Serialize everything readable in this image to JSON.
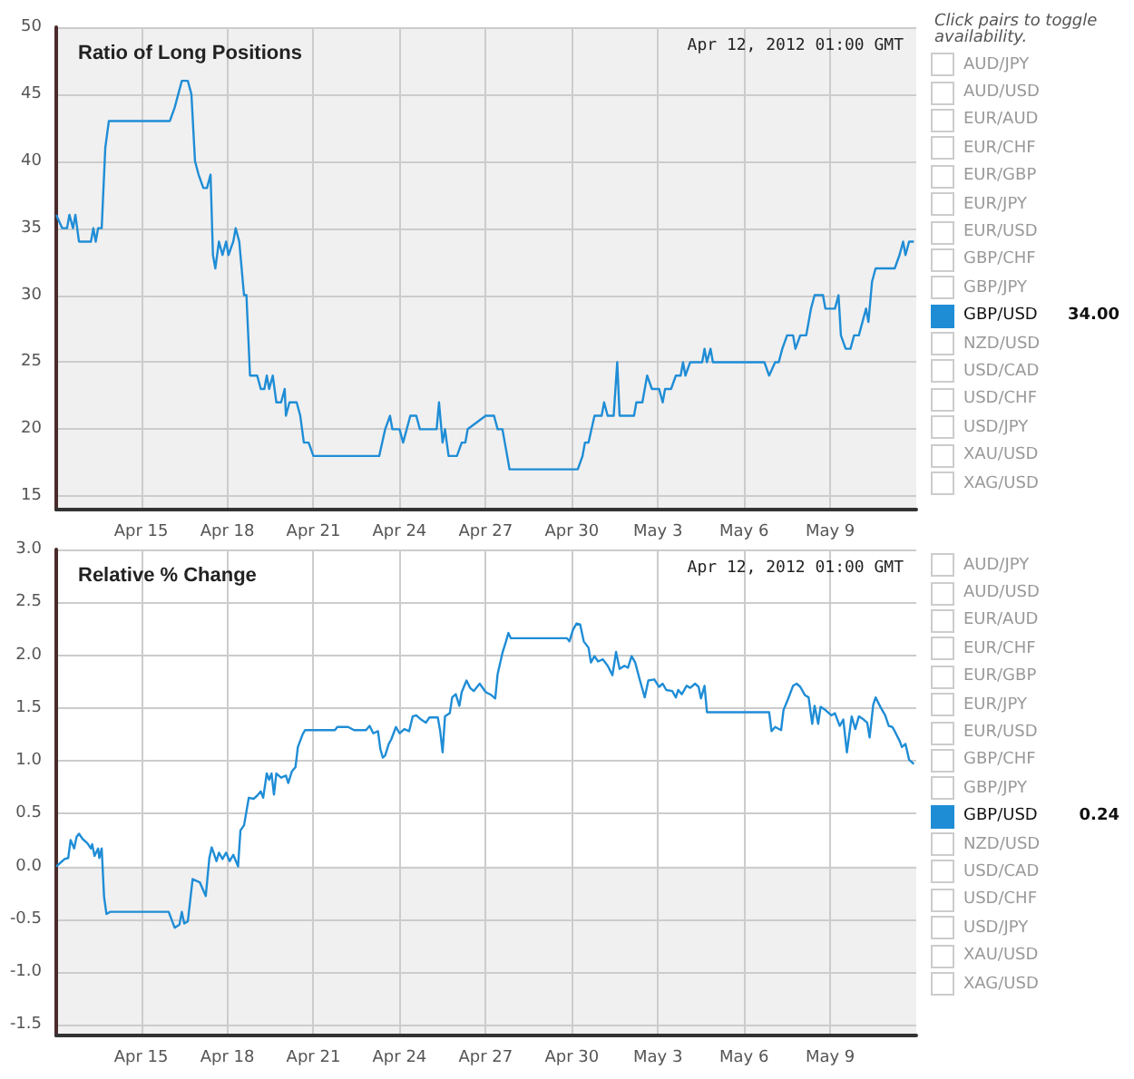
{
  "chart_data": [
    {
      "type": "line",
      "title": "Ratio of Long Positions",
      "legend_title": "Click pairs to toggle availability.",
      "legend": "right",
      "grid": true,
      "marker": "none",
      "annotations": [
        "Apr 12, 2012 01:00 GMT",
        "AUD/JPY",
        "AUD/USD",
        "EUR/AUD",
        "EUR/CHF",
        "EUR/GBP",
        "EUR/JPY",
        "EUR/USD",
        "GBP/CHF",
        "GBP/JPY",
        "NZD/USD",
        "USD/CAD",
        "USD/CHF",
        "USD/JPY",
        "XAU/USD",
        "XAG/USD",
        "34.00"
      ],
      "xlim": [
        "2012-04-12T01:00",
        "2012-05-12T00:00"
      ],
      "xticks": [
        {
          "value": "2012-04-15",
          "label": "Apr 15"
        },
        {
          "value": "2012-04-18",
          "label": "Apr 18"
        },
        {
          "value": "2012-04-21",
          "label": "Apr 21"
        },
        {
          "value": "2012-04-24",
          "label": "Apr 24"
        },
        {
          "value": "2012-04-27",
          "label": "Apr 27"
        },
        {
          "value": "2012-04-30",
          "label": "Apr 30"
        },
        {
          "value": "2012-05-03",
          "label": "May 3"
        },
        {
          "value": "2012-05-06",
          "label": "May 6"
        },
        {
          "value": "2012-05-09",
          "label": "May 9"
        }
      ],
      "ylim": [
        14,
        50
      ],
      "yticks": [
        15,
        20,
        25,
        30,
        35,
        40,
        45,
        50
      ],
      "x": [
        "2012-04-12T01:00",
        "2012-04-12T06:00",
        "2012-04-12T10:00",
        "2012-04-12T12:00",
        "2012-04-12T15:00",
        "2012-04-12T17:00",
        "2012-04-12T20:00",
        "2012-04-13T06:00",
        "2012-04-13T08:00",
        "2012-04-13T10:00",
        "2012-04-13T12:00",
        "2012-04-13T15:00",
        "2012-04-13T18:00",
        "2012-04-13T21:00",
        "2012-04-16T00:00",
        "2012-04-16T04:00",
        "2012-04-16T07:00",
        "2012-04-16T10:00",
        "2012-04-16T15:00",
        "2012-04-16T18:00",
        "2012-04-16T21:00",
        "2012-04-17T00:00",
        "2012-04-17T04:00",
        "2012-04-17T07:00",
        "2012-04-17T10:00",
        "2012-04-17T12:00",
        "2012-04-17T14:00",
        "2012-04-17T17:00",
        "2012-04-17T20:00",
        "2012-04-17T23:00",
        "2012-04-18T01:00",
        "2012-04-18T05:00",
        "2012-04-18T07:00",
        "2012-04-18T10:00",
        "2012-04-18T14:00",
        "2012-04-18T16:00",
        "2012-04-18T19:00",
        "2012-04-19T01:00",
        "2012-04-19T04:00",
        "2012-04-19T07:00",
        "2012-04-19T09:00",
        "2012-04-19T11:00",
        "2012-04-19T14:00",
        "2012-04-19T17:00",
        "2012-04-19T21:00",
        "2012-04-20T00:00",
        "2012-04-20T01:00",
        "2012-04-20T04:00",
        "2012-04-20T10:00",
        "2012-04-20T13:00",
        "2012-04-20T16:00",
        "2012-04-20T20:00",
        "2012-04-21T00:00",
        "2012-04-23T07:00",
        "2012-04-23T12:00",
        "2012-04-23T16:00",
        "2012-04-23T18:00",
        "2012-04-24T00:00",
        "2012-04-24T03:00",
        "2012-04-24T06:00",
        "2012-04-24T09:00",
        "2012-04-24T14:00",
        "2012-04-24T17:00",
        "2012-04-25T07:00",
        "2012-04-25T09:00",
        "2012-04-25T12:00",
        "2012-04-25T14:00",
        "2012-04-25T17:00",
        "2012-04-26T00:00",
        "2012-04-26T04:00",
        "2012-04-26T07:00",
        "2012-04-26T09:00",
        "2012-04-27T00:00",
        "2012-04-27T07:00",
        "2012-04-27T10:00",
        "2012-04-27T14:00",
        "2012-04-27T16:00",
        "2012-04-27T20:00",
        "2012-04-30T05:00",
        "2012-04-30T09:00",
        "2012-04-30T11:00",
        "2012-04-30T14:00",
        "2012-04-30T19:00",
        "2012-05-01T01:00",
        "2012-05-01T03:00",
        "2012-05-01T06:00",
        "2012-05-01T11:00",
        "2012-05-01T14:00",
        "2012-05-01T16:00",
        "2012-05-02T04:00",
        "2012-05-02T06:00",
        "2012-05-02T11:00",
        "2012-05-02T15:00",
        "2012-05-02T19:00",
        "2012-05-03T01:00",
        "2012-05-03T04:00",
        "2012-05-03T06:00",
        "2012-05-03T11:00",
        "2012-05-03T15:00",
        "2012-05-03T19:00",
        "2012-05-03T21:00",
        "2012-05-03T23:00",
        "2012-05-04T03:00",
        "2012-05-04T13:00",
        "2012-05-04T15:00",
        "2012-05-04T17:00",
        "2012-05-04T20:00",
        "2012-05-04T22:00",
        "2012-05-06T17:00",
        "2012-05-06T21:00",
        "2012-05-07T02:00",
        "2012-05-07T05:00",
        "2012-05-07T08:00",
        "2012-05-07T12:00",
        "2012-05-07T17:00",
        "2012-05-07T19:00",
        "2012-05-07T23:00",
        "2012-05-08T04:00",
        "2012-05-08T08:00",
        "2012-05-08T11:00",
        "2012-05-08T18:00",
        "2012-05-08T20:00",
        "2012-05-09T04:00",
        "2012-05-09T07:00",
        "2012-05-09T09:00",
        "2012-05-09T13:00",
        "2012-05-09T17:00",
        "2012-05-09T20:00",
        "2012-05-10T00:00",
        "2012-05-10T03:00",
        "2012-05-10T06:00",
        "2012-05-10T08:00",
        "2012-05-10T11:00",
        "2012-05-10T14:00",
        "2012-05-10T18:00",
        "2012-05-11T06:00",
        "2012-05-11T10:00",
        "2012-05-11T13:00",
        "2012-05-11T15:00",
        "2012-05-11T18:00",
        "2012-05-11T22:00"
      ],
      "series": [
        {
          "name": "GBP/USD",
          "color": "#1f8dd6",
          "values": [
            36,
            35,
            35,
            36,
            35,
            36,
            34,
            34,
            35,
            34,
            35,
            35,
            41,
            43,
            43,
            44,
            45,
            46,
            46,
            45,
            40,
            39,
            38,
            38,
            39,
            33,
            32,
            34,
            33,
            34,
            33,
            34,
            35,
            34,
            30,
            30,
            24,
            24,
            23,
            23,
            24,
            23,
            24,
            22,
            22,
            23,
            21,
            22,
            22,
            21,
            19,
            19,
            18,
            18,
            20,
            21,
            20,
            20,
            19,
            20,
            21,
            21,
            20,
            20,
            22,
            19,
            20,
            18,
            18,
            19,
            19,
            20,
            21,
            21,
            20,
            20,
            19,
            17,
            17,
            18,
            19,
            19,
            21,
            21,
            22,
            21,
            21,
            25,
            21,
            21,
            22,
            22,
            24,
            23,
            23,
            22,
            23,
            23,
            24,
            24,
            25,
            24,
            25,
            25,
            26,
            25,
            26,
            25,
            25,
            24,
            25,
            25,
            26,
            27,
            27,
            26,
            27,
            27,
            29,
            30,
            30,
            29,
            29,
            30,
            27,
            26,
            26,
            27,
            27,
            28,
            29,
            28,
            31,
            32,
            32,
            32,
            33,
            34,
            33,
            34,
            34
          ]
        }
      ]
    },
    {
      "type": "line",
      "title": "Relative % Change",
      "legend": "right",
      "grid": true,
      "marker": "none",
      "annotations": [
        "Apr 12, 2012 01:00 GMT",
        "AUD/JPY",
        "AUD/USD",
        "EUR/AUD",
        "EUR/CHF",
        "EUR/GBP",
        "EUR/JPY",
        "EUR/USD",
        "GBP/CHF",
        "GBP/JPY",
        "NZD/USD",
        "USD/CAD",
        "USD/CHF",
        "USD/JPY",
        "XAU/USD",
        "XAG/USD",
        "0.24"
      ],
      "bands": [
        {
          "axis": "y",
          "from": -1.6,
          "to": 0,
          "color": "#f0f0f0"
        }
      ],
      "xlim": [
        "2012-04-12T01:00",
        "2012-05-12T00:00"
      ],
      "xticks": [
        {
          "value": "2012-04-15",
          "label": "Apr 15"
        },
        {
          "value": "2012-04-18",
          "label": "Apr 18"
        },
        {
          "value": "2012-04-21",
          "label": "Apr 21"
        },
        {
          "value": "2012-04-24",
          "label": "Apr 24"
        },
        {
          "value": "2012-04-27",
          "label": "Apr 27"
        },
        {
          "value": "2012-04-30",
          "label": "Apr 30"
        },
        {
          "value": "2012-05-03",
          "label": "May 3"
        },
        {
          "value": "2012-05-06",
          "label": "May 6"
        },
        {
          "value": "2012-05-09",
          "label": "May 9"
        }
      ],
      "ylim": [
        -1.6,
        3.0
      ],
      "yticks": [
        {
          "value": -1.5,
          "label": "-1.5"
        },
        {
          "value": -1,
          "label": "-1.0"
        },
        {
          "value": -0.5,
          "label": "-0.5"
        },
        {
          "value": 0,
          "label": "0.0"
        },
        {
          "value": 0.5,
          "label": "0.5"
        },
        {
          "value": 1,
          "label": "1.0"
        },
        {
          "value": 1.5,
          "label": "1.5"
        },
        {
          "value": 2,
          "label": "2.0"
        },
        {
          "value": 2.5,
          "label": "2.5"
        },
        {
          "value": 3,
          "label": "3.0"
        }
      ],
      "x": [
        "2012-04-12T01:00",
        "2012-04-12T06:00",
        "2012-04-12T08:00",
        "2012-04-12T11:00",
        "2012-04-12T13:00",
        "2012-04-12T16:00",
        "2012-04-12T18:00",
        "2012-04-12T20:00",
        "2012-04-12T23:00",
        "2012-04-13T03:00",
        "2012-04-13T06:00",
        "2012-04-13T07:00",
        "2012-04-13T09:00",
        "2012-04-13T12:00",
        "2012-04-13T13:00",
        "2012-04-13T15:00",
        "2012-04-13T17:00",
        "2012-04-13T19:00",
        "2012-04-13T22:00",
        "2012-04-15T23:00",
        "2012-04-16T02:00",
        "2012-04-16T04:00",
        "2012-04-16T08:00",
        "2012-04-16T10:00",
        "2012-04-16T12:00",
        "2012-04-16T15:00",
        "2012-04-16T19:00",
        "2012-04-17T01:00",
        "2012-04-17T06:00",
        "2012-04-17T09:00",
        "2012-04-17T11:00",
        "2012-04-17T15:00",
        "2012-04-17T17:00",
        "2012-04-17T20:00",
        "2012-04-17T23:00",
        "2012-04-18T02:00",
        "2012-04-18T05:00",
        "2012-04-18T09:00",
        "2012-04-18T11:00",
        "2012-04-18T14:00",
        "2012-04-18T18:00",
        "2012-04-18T22:00",
        "2012-04-19T01:00",
        "2012-04-19T04:00",
        "2012-04-19T06:00",
        "2012-04-19T09:00",
        "2012-04-19T11:00",
        "2012-04-19T13:00",
        "2012-04-19T15:00",
        "2012-04-19T17:00",
        "2012-04-19T21:00",
        "2012-04-20T01:00",
        "2012-04-20T03:00",
        "2012-04-20T06:00",
        "2012-04-20T09:00",
        "2012-04-20T11:00",
        "2012-04-20T15:00",
        "2012-04-20T17:00",
        "2012-04-21T18:00",
        "2012-04-21T20:00",
        "2012-04-22T05:00",
        "2012-04-22T10:00",
        "2012-04-22T20:00",
        "2012-04-22T23:00",
        "2012-04-23T02:00",
        "2012-04-23T06:00",
        "2012-04-23T08:00",
        "2012-04-23T10:00",
        "2012-04-23T12:00",
        "2012-04-23T15:00",
        "2012-04-23T17:00",
        "2012-04-23T21:00",
        "2012-04-24T00:00",
        "2012-04-24T04:00",
        "2012-04-24T08:00",
        "2012-04-24T11:00",
        "2012-04-24T14:00",
        "2012-04-24T18:00",
        "2012-04-24T22:00",
        "2012-04-25T01:00",
        "2012-04-25T08:00",
        "2012-04-25T10:00",
        "2012-04-25T12:00",
        "2012-04-25T14:00",
        "2012-04-25T18:00",
        "2012-04-25T20:00",
        "2012-04-25T23:00",
        "2012-04-26T02:00",
        "2012-04-26T04:00",
        "2012-04-26T08:00",
        "2012-04-26T11:00",
        "2012-04-26T14:00",
        "2012-04-26T19:00",
        "2012-04-27T00:00",
        "2012-04-27T05:00",
        "2012-04-27T08:00",
        "2012-04-27T10:00",
        "2012-04-27T14:00",
        "2012-04-27T17:00",
        "2012-04-27T19:00",
        "2012-04-27T21:00",
        "2012-04-29T20:00",
        "2012-04-29T22:00",
        "2012-04-30T01:00",
        "2012-04-30T04:00",
        "2012-04-30T07:00",
        "2012-04-30T10:00",
        "2012-04-30T14:00",
        "2012-04-30T16:00",
        "2012-04-30T19:00",
        "2012-04-30T22:00",
        "2012-05-01T02:00",
        "2012-05-01T06:00",
        "2012-05-01T10:00",
        "2012-05-01T13:00",
        "2012-05-01T16:00",
        "2012-05-01T20:00",
        "2012-05-01T23:00",
        "2012-05-02T02:00",
        "2012-05-02T05:00",
        "2012-05-02T09:00",
        "2012-05-02T13:00",
        "2012-05-02T16:00",
        "2012-05-02T21:00",
        "2012-05-03T01:00",
        "2012-05-03T04:00",
        "2012-05-03T07:00",
        "2012-05-03T12:00",
        "2012-05-03T15:00",
        "2012-05-03T17:00",
        "2012-05-03T20:00",
        "2012-05-04T00:00",
        "2012-05-04T03:00",
        "2012-05-04T07:00",
        "2012-05-04T10:00",
        "2012-05-04T12:00",
        "2012-05-04T15:00",
        "2012-05-04T17:00",
        "2012-05-04T21:00",
        "2012-05-06T21:00",
        "2012-05-06T23:00",
        "2012-05-07T02:00",
        "2012-05-07T07:00",
        "2012-05-07T09:00",
        "2012-05-07T13:00",
        "2012-05-07T17:00",
        "2012-05-07T20:00",
        "2012-05-07T23:00",
        "2012-05-08T03:00",
        "2012-05-08T06:00",
        "2012-05-08T09:00",
        "2012-05-08T11:00",
        "2012-05-08T14:00",
        "2012-05-08T16:00",
        "2012-05-08T20:00",
        "2012-05-09T01:00",
        "2012-05-09T04:00",
        "2012-05-09T08:00",
        "2012-05-09T11:00",
        "2012-05-09T14:00",
        "2012-05-09T18:00",
        "2012-05-09T21:00",
        "2012-05-10T00:00",
        "2012-05-10T04:00",
        "2012-05-10T07:00",
        "2012-05-10T09:00",
        "2012-05-10T12:00",
        "2012-05-10T14:00",
        "2012-05-10T18:00",
        "2012-05-10T22:00",
        "2012-05-11T01:00",
        "2012-05-11T04:00",
        "2012-05-11T06:00",
        "2012-05-11T10:00",
        "2012-05-11T12:00",
        "2012-05-11T15:00",
        "2012-05-11T18:00",
        "2012-05-11T22:00"
      ],
      "series": [
        {
          "name": "GBP/USD",
          "color": "#1f8dd6",
          "values": [
            0.0,
            0.05,
            0.07,
            0.08,
            0.25,
            0.17,
            0.28,
            0.31,
            0.26,
            0.22,
            0.17,
            0.21,
            0.1,
            0.17,
            0.08,
            0.17,
            -0.29,
            -0.45,
            -0.43,
            -0.43,
            -0.52,
            -0.58,
            -0.55,
            -0.43,
            -0.54,
            -0.52,
            -0.12,
            -0.15,
            -0.28,
            0.08,
            0.18,
            0.05,
            0.13,
            0.07,
            0.13,
            0.05,
            0.11,
            0.0,
            0.34,
            0.39,
            0.65,
            0.64,
            0.67,
            0.71,
            0.65,
            0.88,
            0.82,
            0.88,
            0.68,
            0.88,
            0.84,
            0.86,
            0.79,
            0.9,
            0.94,
            1.13,
            1.25,
            1.29,
            1.29,
            1.32,
            1.32,
            1.29,
            1.29,
            1.33,
            1.26,
            1.28,
            1.11,
            1.03,
            1.05,
            1.16,
            1.2,
            1.32,
            1.26,
            1.3,
            1.28,
            1.42,
            1.43,
            1.39,
            1.36,
            1.41,
            1.41,
            1.28,
            1.08,
            1.42,
            1.45,
            1.6,
            1.63,
            1.52,
            1.65,
            1.76,
            1.69,
            1.66,
            1.73,
            1.65,
            1.62,
            1.59,
            1.82,
            2.02,
            2.13,
            2.21,
            2.16,
            2.16,
            2.13,
            2.24,
            2.3,
            2.29,
            2.13,
            2.07,
            1.93,
            1.99,
            1.94,
            1.96,
            1.9,
            1.81,
            2.03,
            1.87,
            1.9,
            1.88,
            1.99,
            1.93,
            1.76,
            1.6,
            1.76,
            1.77,
            1.7,
            1.73,
            1.67,
            1.66,
            1.6,
            1.67,
            1.63,
            1.71,
            1.69,
            1.73,
            1.7,
            1.59,
            1.71,
            1.46,
            1.46,
            1.46,
            1.28,
            1.32,
            1.29,
            1.48,
            1.59,
            1.71,
            1.73,
            1.7,
            1.62,
            1.6,
            1.35,
            1.52,
            1.35,
            1.51,
            1.48,
            1.43,
            1.45,
            1.33,
            1.39,
            1.08,
            1.42,
            1.3,
            1.42,
            1.39,
            1.36,
            1.22,
            1.53,
            1.6,
            1.51,
            1.43,
            1.33,
            1.32,
            1.28,
            1.19,
            1.13,
            1.16,
            1.01,
            0.97
          ]
        }
      ]
    }
  ]
}
